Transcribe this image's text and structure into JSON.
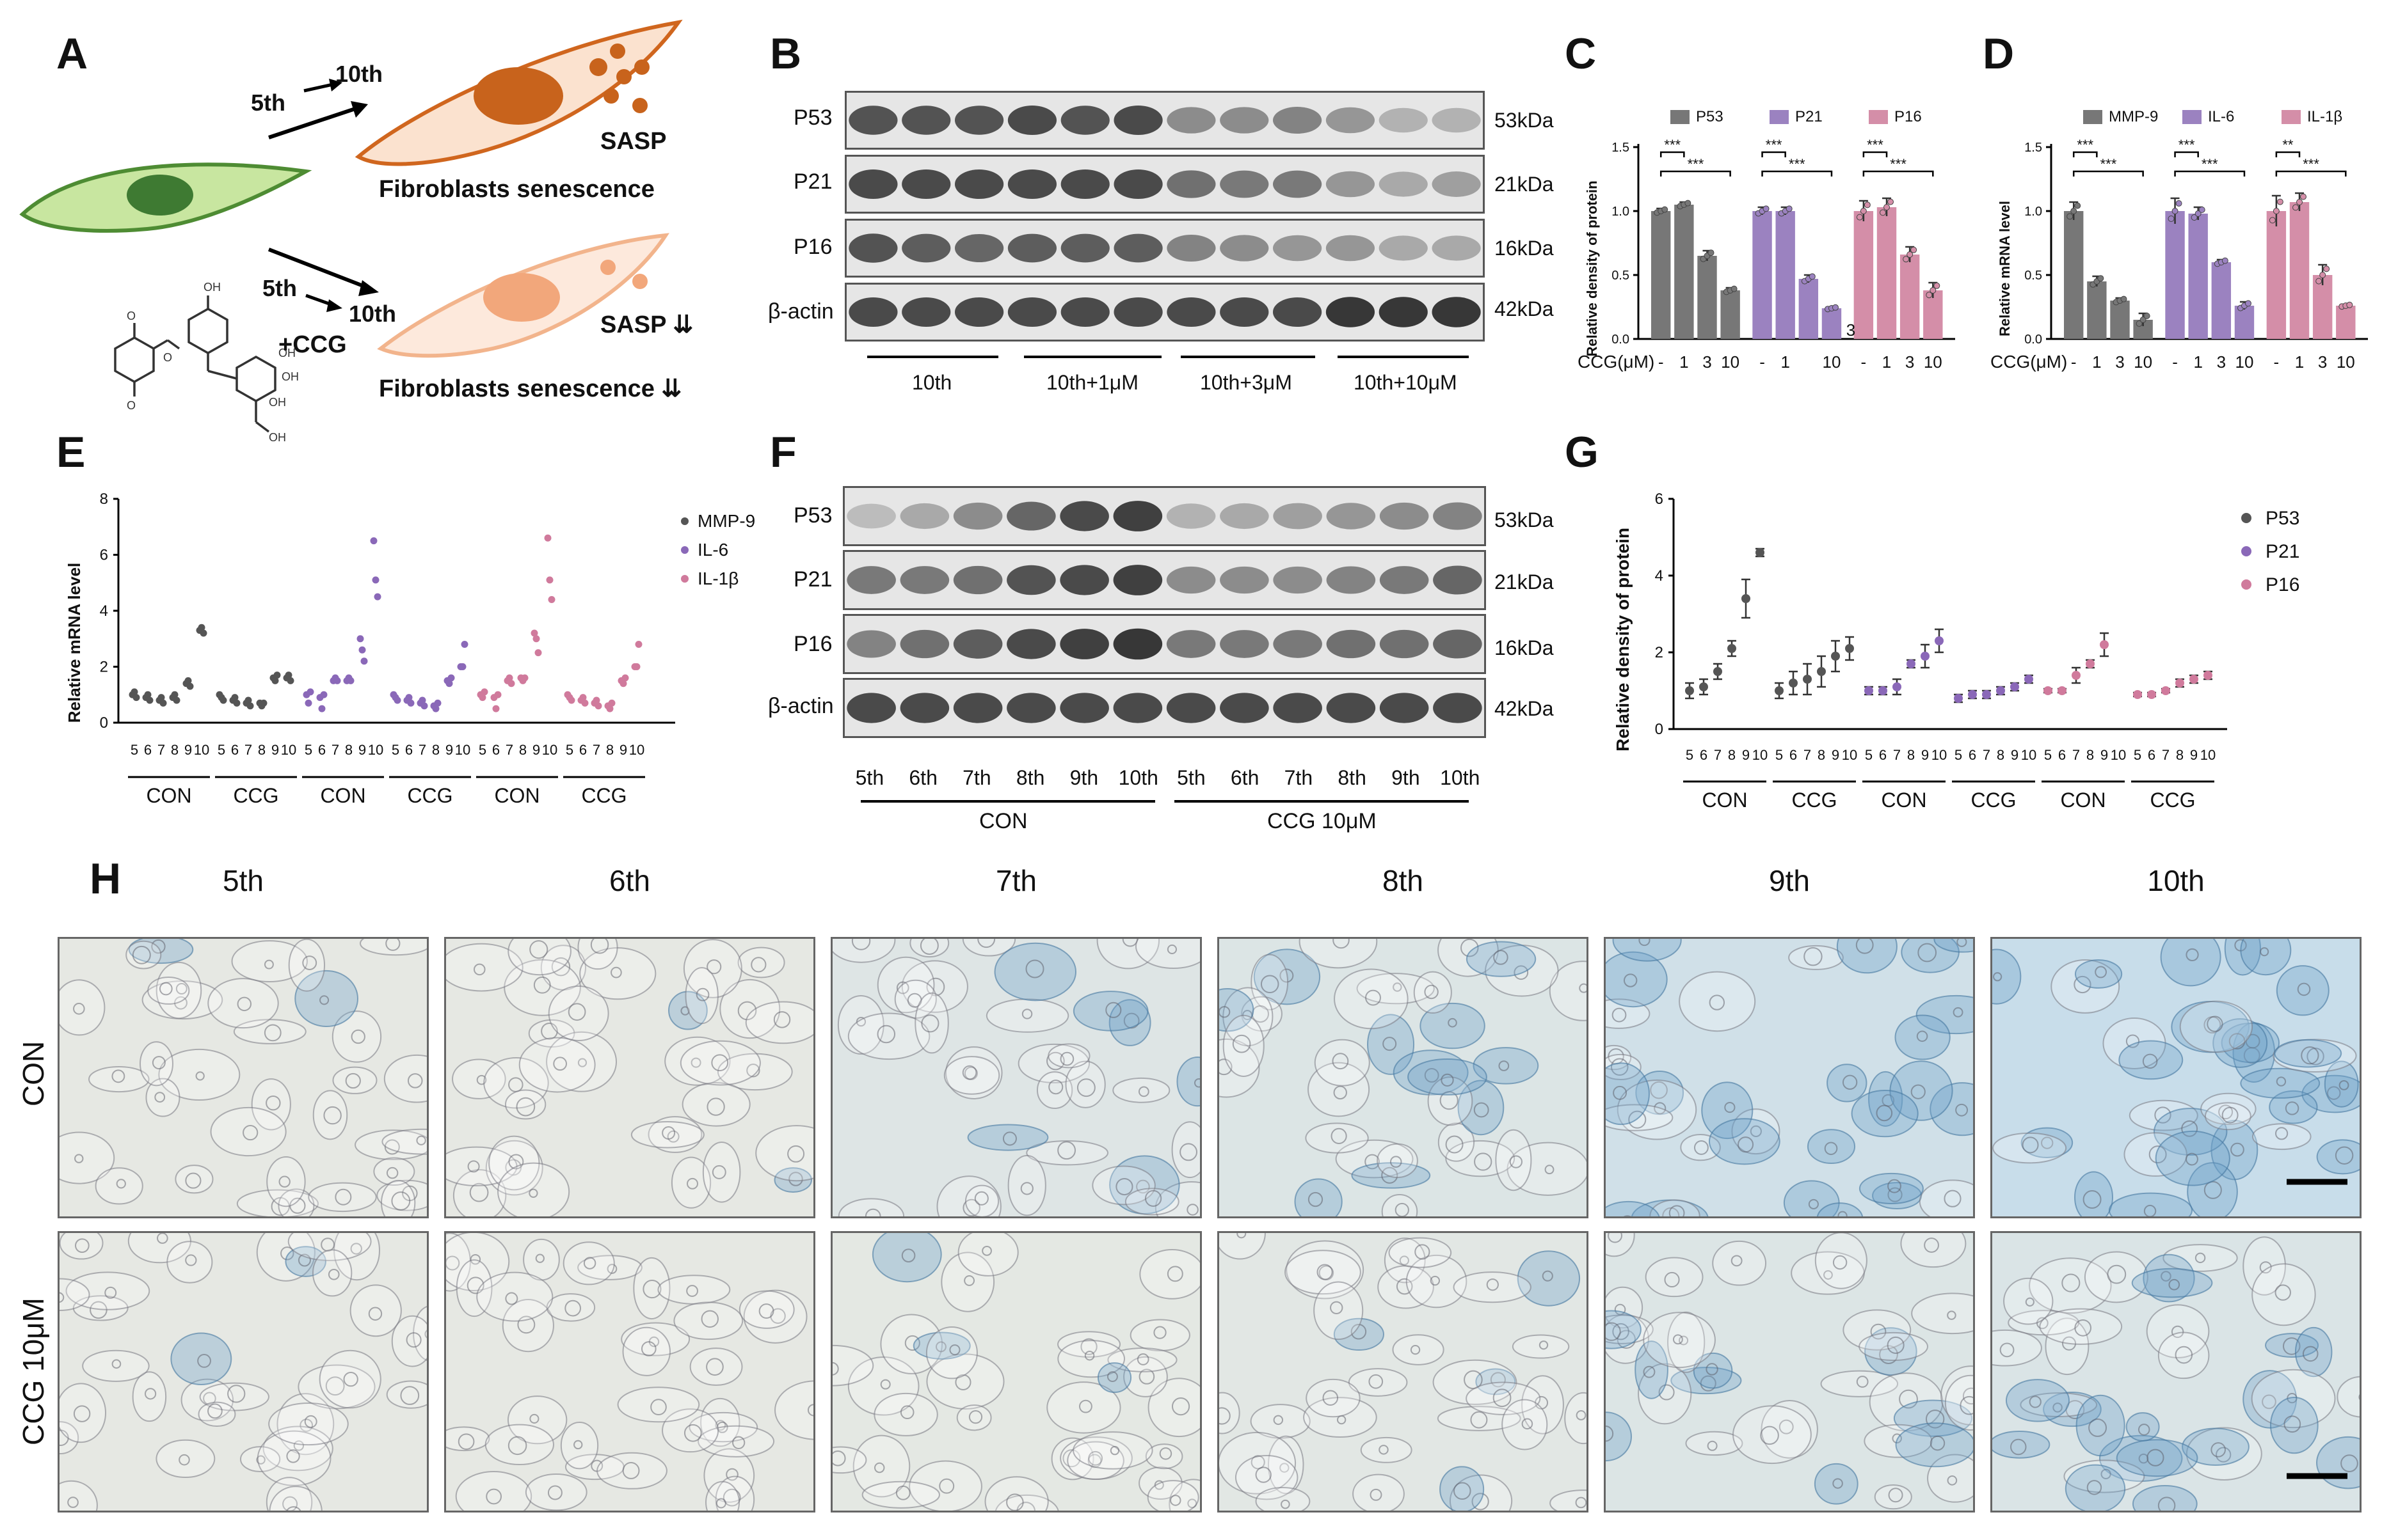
{
  "panels": {
    "A": "A",
    "B": "B",
    "C": "C",
    "D": "D",
    "E": "E",
    "F": "F",
    "G": "G",
    "H": "H"
  },
  "panel_a": {
    "top_from": "5th",
    "top_to": "10th",
    "top_sasp": "SASP",
    "top_title": "Fibroblasts senescence",
    "bot_from": "5th",
    "bot_to": "10th",
    "bot_drug": "+CCG",
    "bot_sasp": "SASP ⇊",
    "bot_title": "Fibroblasts senescence ⇊",
    "colors": {
      "cell_green": "#c8e6a0",
      "nucleus_green": "#3e7a32",
      "cell_orange": "#fbe2cf",
      "nucleus_orange": "#c8631c",
      "cell_peach": "#fde9dc",
      "nucleus_peach": "#f2a77b"
    }
  },
  "panel_b": {
    "rows": [
      {
        "label": "P53",
        "kda": "53kDa"
      },
      {
        "label": "P21",
        "kda": "21kDa"
      },
      {
        "label": "P16",
        "kda": "16kDa"
      },
      {
        "label": "β-actin",
        "kda": "42kDa"
      }
    ],
    "groups": [
      "10th",
      "10th+1μM",
      "10th+3μM",
      "10th+10μM"
    ]
  },
  "panel_f": {
    "rows": [
      {
        "label": "P53",
        "kda": "53kDa"
      },
      {
        "label": "P21",
        "kda": "21kDa"
      },
      {
        "label": "P16",
        "kda": "16kDa"
      },
      {
        "label": "β-actin",
        "kda": "42kDa"
      }
    ],
    "lanes": [
      "5th",
      "6th",
      "7th",
      "8th",
      "9th",
      "10th",
      "5th",
      "6th",
      "7th",
      "8th",
      "9th",
      "10th"
    ],
    "groups": [
      "CON",
      "CCG 10μM"
    ]
  },
  "panel_h": {
    "cols": [
      "5th",
      "6th",
      "7th",
      "8th",
      "9th",
      "10th"
    ],
    "rows": [
      "CON",
      "CCG 10μM"
    ],
    "stain_level": [
      [
        0.05,
        0.05,
        0.25,
        0.3,
        0.6,
        0.8
      ],
      [
        0.05,
        0.05,
        0.1,
        0.15,
        0.3,
        0.35
      ]
    ]
  },
  "chart_data": [
    {
      "id": "C",
      "type": "bar",
      "ylabel": "Relative density of protein",
      "ylim": [
        0,
        1.5
      ],
      "yticks": [
        "0.0",
        "0.5",
        "1.0",
        "1.5"
      ],
      "xlabel": "CCG(μM)",
      "tick_labels": [
        "-",
        "1",
        "3",
        "10",
        "-",
        "1",
        "",
        "10",
        "-",
        "1",
        "3",
        "10"
      ],
      "extra_text": "3",
      "series": [
        {
          "name": "P53",
          "color": "#777777",
          "values": [
            1.0,
            1.05,
            0.65,
            0.38
          ],
          "errors": [
            0.02,
            0.02,
            0.04,
            0.02
          ]
        },
        {
          "name": "P21",
          "color": "#9b82c0",
          "values": [
            1.0,
            1.0,
            0.47,
            0.24
          ],
          "errors": [
            0.03,
            0.03,
            0.03,
            0.01
          ]
        },
        {
          "name": "P16",
          "color": "#d48ea8",
          "values": [
            1.0,
            1.03,
            0.66,
            0.38
          ],
          "errors": [
            0.08,
            0.07,
            0.06,
            0.06
          ]
        }
      ],
      "significance": [
        "***",
        "***",
        "***",
        "***",
        "***",
        "***"
      ]
    },
    {
      "id": "D",
      "type": "bar",
      "ylabel": "Relative  mRNA level",
      "ylim": [
        0,
        1.5
      ],
      "yticks": [
        "0.0",
        "0.5",
        "1.0",
        "1.5"
      ],
      "xlabel": "CCG(μM)",
      "tick_labels": [
        "-",
        "1",
        "3",
        "10",
        "-",
        "1",
        "3",
        "10",
        "-",
        "1",
        "3",
        "10"
      ],
      "series": [
        {
          "name": "MMP-9",
          "color": "#777777",
          "values": [
            1.0,
            0.45,
            0.3,
            0.15
          ],
          "errors": [
            0.07,
            0.04,
            0.02,
            0.05
          ]
        },
        {
          "name": "IL-6",
          "color": "#9b82c0",
          "values": [
            1.0,
            0.98,
            0.6,
            0.26
          ],
          "errors": [
            0.1,
            0.05,
            0.02,
            0.03
          ]
        },
        {
          "name": "IL-1β",
          "color": "#d48ea8",
          "values": [
            1.0,
            1.07,
            0.5,
            0.26
          ],
          "errors": [
            0.12,
            0.07,
            0.08,
            0.01
          ]
        }
      ],
      "significance": [
        "***",
        "***",
        "***",
        "***",
        "**",
        "***"
      ]
    },
    {
      "id": "E",
      "type": "scatter",
      "ylabel": "Relative  mRNA level",
      "ylim": [
        0,
        8
      ],
      "yticks": [
        "0",
        "2",
        "4",
        "6",
        "8"
      ],
      "tick_labels": [
        "5",
        "6",
        "7",
        "8",
        "9",
        "10"
      ],
      "groups": [
        "CON",
        "CCG",
        "CON",
        "CCG",
        "CON",
        "CCG"
      ],
      "series": [
        {
          "name": "MMP-9",
          "color": "#555555",
          "con": [
            [
              1.0,
              1.1,
              0.9
            ],
            [
              0.9,
              1.0,
              0.8
            ],
            [
              0.8,
              0.9,
              0.7
            ],
            [
              0.9,
              1.0,
              0.8
            ],
            [
              1.4,
              1.5,
              1.3
            ],
            [
              3.3,
              3.4,
              3.2
            ]
          ],
          "ccg": [
            [
              1.0,
              0.9,
              0.8
            ],
            [
              0.8,
              0.9,
              0.7
            ],
            [
              0.7,
              0.8,
              0.6
            ],
            [
              0.7,
              0.6,
              0.7
            ],
            [
              1.6,
              1.5,
              1.7
            ],
            [
              1.6,
              1.7,
              1.5
            ]
          ]
        },
        {
          "name": "IL-6",
          "color": "#8a68b8",
          "con": [
            [
              1.0,
              0.7,
              1.1
            ],
            [
              0.9,
              0.5,
              1.0
            ],
            [
              1.5,
              1.6,
              1.5
            ],
            [
              1.5,
              1.6,
              1.5
            ],
            [
              3.0,
              2.6,
              2.2
            ],
            [
              6.5,
              5.1,
              4.5
            ]
          ],
          "ccg": [
            [
              1.0,
              0.9,
              0.8
            ],
            [
              0.8,
              0.9,
              0.7
            ],
            [
              0.7,
              0.8,
              0.6
            ],
            [
              0.6,
              0.5,
              0.7
            ],
            [
              1.5,
              1.4,
              1.6
            ],
            [
              2.0,
              2.0,
              2.8
            ]
          ]
        },
        {
          "name": "IL-1β",
          "color": "#d07a9c",
          "con": [
            [
              1.0,
              0.9,
              1.1
            ],
            [
              0.9,
              0.5,
              1.0
            ],
            [
              1.5,
              1.6,
              1.4
            ],
            [
              1.6,
              1.5,
              1.6
            ],
            [
              3.2,
              3.0,
              2.5
            ],
            [
              6.6,
              5.1,
              4.4
            ]
          ],
          "ccg": [
            [
              1.0,
              0.9,
              0.8
            ],
            [
              0.8,
              0.9,
              0.7
            ],
            [
              0.7,
              0.8,
              0.6
            ],
            [
              0.6,
              0.5,
              0.7
            ],
            [
              1.5,
              1.4,
              1.6
            ],
            [
              2.0,
              2.0,
              2.8
            ]
          ]
        }
      ]
    },
    {
      "id": "G",
      "type": "scatter",
      "ylabel": "Relative density of protein",
      "ylim": [
        0,
        6
      ],
      "yticks": [
        "0",
        "2",
        "4",
        "6"
      ],
      "tick_labels": [
        "5",
        "6",
        "7",
        "8",
        "9",
        "10"
      ],
      "groups": [
        "CON",
        "CCG",
        "CON",
        "CCG",
        "CON",
        "CCG"
      ],
      "series": [
        {
          "name": "P53",
          "color": "#555555",
          "con": [
            1.0,
            1.1,
            1.5,
            2.1,
            3.4,
            4.6
          ],
          "con_err": [
            0.2,
            0.2,
            0.2,
            0.2,
            0.5,
            0.1
          ],
          "ccg": [
            1.0,
            1.2,
            1.3,
            1.5,
            1.9,
            2.1
          ],
          "ccg_err": [
            0.2,
            0.3,
            0.4,
            0.4,
            0.4,
            0.3
          ]
        },
        {
          "name": "P21",
          "color": "#8a68b8",
          "con": [
            1.0,
            1.0,
            1.1,
            1.7,
            1.9,
            2.3
          ],
          "con_err": [
            0.1,
            0.1,
            0.2,
            0.1,
            0.3,
            0.3
          ],
          "ccg": [
            0.8,
            0.9,
            0.9,
            1.0,
            1.1,
            1.3
          ],
          "ccg_err": [
            0.1,
            0.1,
            0.1,
            0.1,
            0.1,
            0.1
          ]
        },
        {
          "name": "P16",
          "color": "#d07a9c",
          "con": [
            1.0,
            1.0,
            1.4,
            1.7,
            2.2,
            0
          ],
          "con_err": [
            0.05,
            0.05,
            0.2,
            0.1,
            0.3,
            0
          ],
          "ccg": [
            0.9,
            0.9,
            1.0,
            1.2,
            1.3,
            1.4
          ],
          "ccg_err": [
            0.05,
            0.05,
            0.05,
            0.1,
            0.1,
            0.1
          ]
        }
      ]
    }
  ]
}
